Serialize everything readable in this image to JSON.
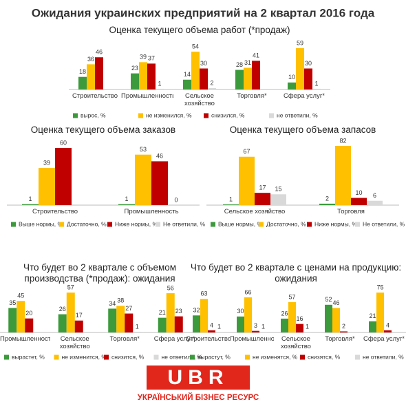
{
  "title": "Ожидания украинских предприятий на 2 квартал 2016 года",
  "logo": {
    "mark": "UBR",
    "caption": "УКРАЇНСЬКИЙ БІЗНЕС РЕСУРС"
  },
  "chart_data": [
    {
      "type": "bar",
      "title": "Оценка текущего объема работ (*продаж)",
      "categories": [
        "Строительство",
        "Промышленность",
        "Сельское хозяйство",
        "Торговля*",
        "Сфера услуг*"
      ],
      "series": [
        {
          "name": "вырос, %",
          "color": "#3c9a3c",
          "values": [
            18,
            23,
            14,
            28,
            10
          ]
        },
        {
          "name": "не изменился, %",
          "color": "#ffc000",
          "values": [
            36,
            39,
            54,
            31,
            59
          ]
        },
        {
          "name": "снизился, %",
          "color": "#c00000",
          "values": [
            46,
            37,
            30,
            41,
            30
          ]
        },
        {
          "name": "не ответили, %",
          "color": "#d9d9d9",
          "values": [
            null,
            1,
            2,
            null,
            1
          ]
        }
      ]
    },
    {
      "type": "bar",
      "title": "Оценка текущего объема заказов",
      "categories": [
        "Строительство",
        "Промышленность"
      ],
      "series": [
        {
          "name": "Выше нормы, %",
          "color": "#3c9a3c",
          "values": [
            1,
            1
          ]
        },
        {
          "name": "Достаточно, %",
          "color": "#ffc000",
          "values": [
            39,
            53
          ]
        },
        {
          "name": "Ниже нормы, %",
          "color": "#c00000",
          "values": [
            60,
            46
          ]
        },
        {
          "name": "Не ответили, %",
          "color": "#d9d9d9",
          "values": [
            null,
            0
          ]
        }
      ]
    },
    {
      "type": "bar",
      "title": "Оценка текущего объема запасов",
      "categories": [
        "Сельское хозяйство",
        "Торговля"
      ],
      "series": [
        {
          "name": "Выше нормы, %",
          "color": "#3c9a3c",
          "values": [
            1,
            2
          ]
        },
        {
          "name": "Достаточно, %",
          "color": "#ffc000",
          "values": [
            67,
            82
          ]
        },
        {
          "name": "Ниже нормы, %",
          "color": "#c00000",
          "values": [
            17,
            10
          ]
        },
        {
          "name": "Не ответили, %",
          "color": "#d9d9d9",
          "values": [
            15,
            6
          ]
        }
      ]
    },
    {
      "type": "bar",
      "title": "Что будет во 2 квартале с объемом производства (*продаж): ожидания",
      "categories": [
        "Промышленность",
        "Сельское хозяйство",
        "Торговля*",
        "Сфера услуг*"
      ],
      "series": [
        {
          "name": "вырастет, %",
          "color": "#3c9a3c",
          "values": [
            35,
            26,
            34,
            21
          ]
        },
        {
          "name": "не изменится, %",
          "color": "#ffc000",
          "values": [
            45,
            57,
            38,
            56
          ]
        },
        {
          "name": "снизится, %",
          "color": "#c00000",
          "values": [
            20,
            17,
            27,
            23
          ]
        },
        {
          "name": "не ответили, %",
          "color": "#d9d9d9",
          "values": [
            null,
            null,
            1,
            null
          ]
        }
      ]
    },
    {
      "type": "bar",
      "title": "Что будет во 2 квартале с ценами на продукцию: ожидания",
      "categories": [
        "Строительство",
        "Промышленность",
        "Сельское хозяйство",
        "Торговля*",
        "Сфера услуг*"
      ],
      "series": [
        {
          "name": "вырастут, %",
          "color": "#3c9a3c",
          "values": [
            32,
            30,
            26,
            52,
            21
          ]
        },
        {
          "name": "не изменятся, %",
          "color": "#ffc000",
          "values": [
            63,
            66,
            57,
            46,
            75
          ]
        },
        {
          "name": "снизятся, %",
          "color": "#c00000",
          "values": [
            4,
            3,
            16,
            2,
            4
          ]
        },
        {
          "name": "не ответили, %",
          "color": "#d9d9d9",
          "values": [
            1,
            1,
            1,
            null,
            null
          ]
        }
      ]
    }
  ]
}
